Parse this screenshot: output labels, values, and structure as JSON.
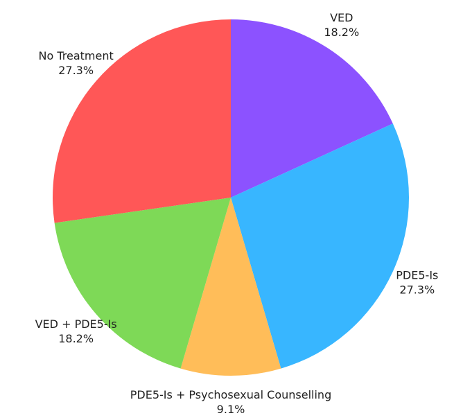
{
  "chart_data": {
    "type": "pie",
    "categories": [
      "VED",
      "PDE5-Is",
      "PDE5-Is + Psychosexual Counselling",
      "VED + PDE5-Is",
      "No Treatment"
    ],
    "values": [
      18.2,
      27.3,
      9.1,
      18.2,
      27.3
    ],
    "value_labels": [
      "18.2%",
      "27.3%",
      "9.1%",
      "18.2%",
      "27.3%"
    ],
    "colors": [
      "#8c52ff",
      "#38b6ff",
      "#ffbd59",
      "#7ed957",
      "#ff5757"
    ]
  }
}
